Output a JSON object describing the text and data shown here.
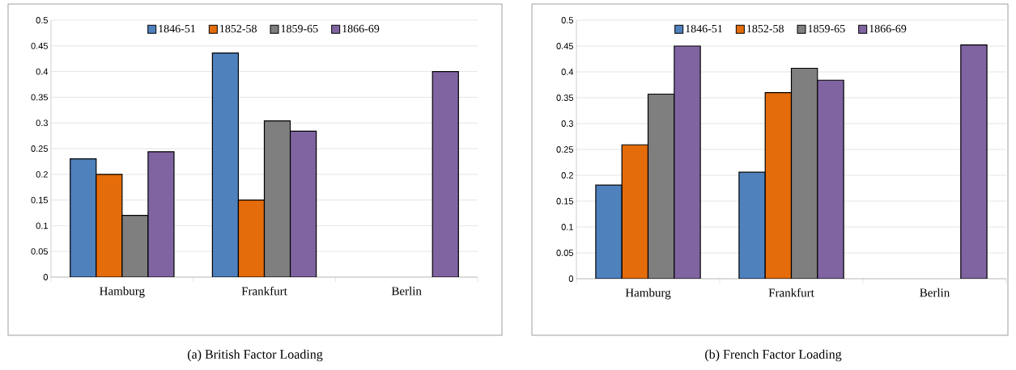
{
  "chart_data": [
    {
      "type": "bar",
      "categories": [
        "Hamburg",
        "Frankfurt",
        "Berlin"
      ],
      "ylim": [
        0,
        0.5
      ],
      "yticks": [
        0,
        0.05,
        0.1,
        0.15,
        0.2,
        0.25,
        0.3,
        0.35,
        0.4,
        0.45,
        0.5
      ],
      "grid": "y",
      "legend": "top",
      "annotations": [
        "(a) British Factor Loading"
      ],
      "series": [
        {
          "name": "1846-51",
          "color": "#4f81bd",
          "values": [
            0.23,
            0.436,
            null
          ]
        },
        {
          "name": "1852-58",
          "color": "#e46c0a",
          "values": [
            0.2,
            0.15,
            null
          ]
        },
        {
          "name": "1859-65",
          "color": "#7f7f7f",
          "values": [
            0.12,
            0.304,
            null
          ]
        },
        {
          "name": "1866-69",
          "color": "#8064a2",
          "values": [
            0.244,
            0.284,
            0.4
          ]
        }
      ]
    },
    {
      "type": "bar",
      "categories": [
        "Hamburg",
        "Frankfurt",
        "Berlin"
      ],
      "ylim": [
        0,
        0.5
      ],
      "yticks": [
        0,
        0.05,
        0.1,
        0.15,
        0.2,
        0.25,
        0.3,
        0.35,
        0.4,
        0.45,
        0.5
      ],
      "grid": "y",
      "legend": "top",
      "annotations": [
        "(b) French Factor Loading"
      ],
      "series": [
        {
          "name": "1846-51",
          "color": "#4f81bd",
          "values": [
            0.181,
            0.206,
            null
          ]
        },
        {
          "name": "1852-58",
          "color": "#e46c0a",
          "values": [
            0.259,
            0.36,
            null
          ]
        },
        {
          "name": "1859-65",
          "color": "#7f7f7f",
          "values": [
            0.357,
            0.407,
            null
          ]
        },
        {
          "name": "1866-69",
          "color": "#8064a2",
          "values": [
            0.45,
            0.384,
            0.452
          ]
        }
      ]
    }
  ]
}
